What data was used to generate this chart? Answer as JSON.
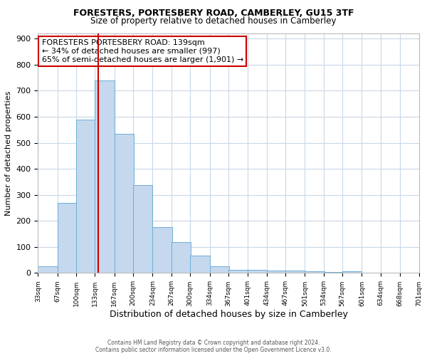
{
  "title1": "FORESTERS, PORTESBERY ROAD, CAMBERLEY, GU15 3TF",
  "title2": "Size of property relative to detached houses in Camberley",
  "xlabel": "Distribution of detached houses by size in Camberley",
  "ylabel": "Number of detached properties",
  "footnote1": "Contains HM Land Registry data © Crown copyright and database right 2024.",
  "footnote2": "Contains public sector information licensed under the Open Government Licence v3.0.",
  "bin_edges": [
    33,
    67,
    100,
    133,
    167,
    200,
    234,
    267,
    300,
    334,
    367,
    401,
    434,
    467,
    501,
    534,
    567,
    601,
    634,
    668,
    701
  ],
  "bar_heights": [
    27,
    270,
    590,
    740,
    535,
    338,
    177,
    118,
    67,
    25,
    13,
    13,
    10,
    8,
    7,
    5,
    7,
    0,
    0,
    0
  ],
  "bar_color": "#c5d8ee",
  "bar_edge_color": "#6baed6",
  "property_size": 139,
  "vline_color": "#cc0000",
  "annotation_text": "FORESTERS PORTESBERY ROAD: 139sqm\n← 34% of detached houses are smaller (997)\n65% of semi-detached houses are larger (1,901) →",
  "annotation_box_color": "#ffffff",
  "annotation_box_edge_color": "#cc0000",
  "ylim": [
    0,
    920
  ],
  "background_color": "#ffffff",
  "grid_color": "#c8d8e8"
}
